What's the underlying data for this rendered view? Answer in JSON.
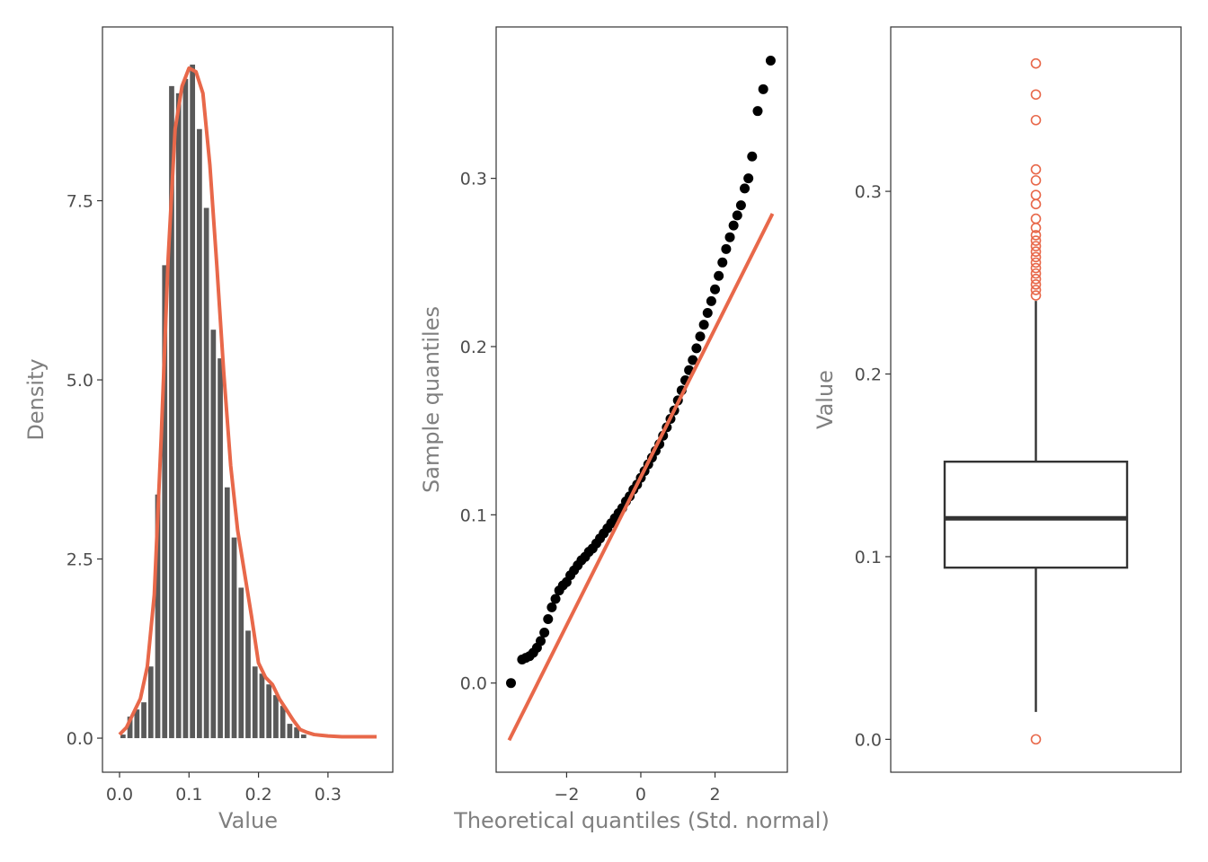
{
  "colors": {
    "bar": "#595959",
    "density": "#e8684a",
    "qq_point": "#000000",
    "qq_line": "#e8684a",
    "box": "#333333",
    "outlier": "#e8684a",
    "panel_border": "#333333",
    "tick_text": "#4d4d4d",
    "axis_title": "#7f7f7f"
  },
  "chart_data": [
    {
      "type": "histogram",
      "xlabel": "Value",
      "ylabel": "Density",
      "xlim": [
        -0.0,
        0.37
      ],
      "ylim": [
        -0.3,
        9.8
      ],
      "x_ticks": [
        0.0,
        0.1,
        0.2,
        0.3
      ],
      "x_tick_labels": [
        "0.0",
        "0.1",
        "0.2",
        "0.3"
      ],
      "y_ticks": [
        0.0,
        2.5,
        5.0,
        7.5
      ],
      "y_tick_labels": [
        "0.0",
        "2.5",
        "5.0",
        "7.5"
      ],
      "bin_width": 0.01,
      "bin_start": 0.0,
      "bars": [
        0.05,
        0.3,
        0.4,
        0.5,
        1.0,
        3.4,
        6.6,
        9.1,
        9.0,
        9.2,
        9.4,
        8.5,
        7.4,
        5.7,
        5.3,
        3.5,
        2.8,
        2.1,
        1.5,
        1.0,
        0.9,
        0.75,
        0.6,
        0.45,
        0.2,
        0.15,
        0.05
      ],
      "density_curve": {
        "x": [
          0.0,
          0.01,
          0.02,
          0.03,
          0.04,
          0.05,
          0.06,
          0.07,
          0.08,
          0.09,
          0.1,
          0.11,
          0.12,
          0.13,
          0.14,
          0.15,
          0.16,
          0.17,
          0.18,
          0.19,
          0.2,
          0.21,
          0.22,
          0.23,
          0.24,
          0.25,
          0.26,
          0.27,
          0.28,
          0.29,
          0.3,
          0.32,
          0.34,
          0.37
        ],
        "y": [
          0.05,
          0.15,
          0.35,
          0.55,
          1.0,
          2.0,
          4.2,
          6.7,
          8.5,
          9.1,
          9.35,
          9.3,
          9.0,
          8.0,
          6.6,
          5.1,
          3.8,
          2.9,
          2.3,
          1.7,
          1.05,
          0.85,
          0.75,
          0.55,
          0.4,
          0.25,
          0.12,
          0.08,
          0.05,
          0.04,
          0.03,
          0.02,
          0.02,
          0.02
        ]
      }
    },
    {
      "type": "scatter",
      "xlabel": "Theoretical quantiles (Std. normal)",
      "ylabel": "Sample quantiles",
      "xlim": [
        -3.9,
        3.95
      ],
      "ylim": [
        -0.053,
        0.39
      ],
      "x_ticks": [
        -2,
        0,
        2
      ],
      "x_tick_labels": [
        "−2",
        "0",
        "2"
      ],
      "y_ticks": [
        0.0,
        0.1,
        0.2,
        0.3
      ],
      "y_tick_labels": [
        "0.0",
        "0.1",
        "0.2",
        "0.3"
      ],
      "reference_line": {
        "x": [
          -3.55,
          3.55
        ],
        "y": [
          -0.034,
          0.279
        ]
      },
      "points": {
        "x": [
          -3.5,
          -3.2,
          -3.1,
          -3.0,
          -2.9,
          -2.8,
          -2.7,
          -2.6,
          -2.5,
          -2.4,
          -2.3,
          -2.2,
          -2.1,
          -2.0,
          -1.9,
          -1.8,
          -1.7,
          -1.6,
          -1.5,
          -1.4,
          -1.3,
          -1.2,
          -1.1,
          -1.0,
          -0.9,
          -0.8,
          -0.7,
          -0.6,
          -0.5,
          -0.4,
          -0.3,
          -0.2,
          -0.1,
          0.0,
          0.1,
          0.2,
          0.3,
          0.4,
          0.5,
          0.6,
          0.7,
          0.8,
          0.9,
          1.0,
          1.1,
          1.2,
          1.3,
          1.4,
          1.5,
          1.6,
          1.7,
          1.8,
          1.9,
          2.0,
          2.1,
          2.2,
          2.3,
          2.4,
          2.5,
          2.6,
          2.7,
          2.8,
          2.9,
          3.0,
          3.15,
          3.3,
          3.5
        ],
        "y": [
          0.0,
          0.014,
          0.015,
          0.016,
          0.018,
          0.021,
          0.025,
          0.03,
          0.038,
          0.045,
          0.05,
          0.055,
          0.058,
          0.06,
          0.064,
          0.067,
          0.07,
          0.073,
          0.075,
          0.078,
          0.08,
          0.083,
          0.086,
          0.089,
          0.092,
          0.095,
          0.098,
          0.101,
          0.104,
          0.108,
          0.111,
          0.115,
          0.118,
          0.122,
          0.126,
          0.13,
          0.134,
          0.138,
          0.142,
          0.147,
          0.152,
          0.157,
          0.162,
          0.168,
          0.174,
          0.18,
          0.186,
          0.192,
          0.199,
          0.206,
          0.213,
          0.22,
          0.227,
          0.234,
          0.242,
          0.25,
          0.258,
          0.265,
          0.272,
          0.278,
          0.284,
          0.294,
          0.3,
          0.313,
          0.34,
          0.353,
          0.37
        ]
      }
    },
    {
      "type": "boxplot",
      "ylabel": "Value",
      "ylim": [
        -0.018,
        0.39
      ],
      "y_ticks": [
        0.0,
        0.1,
        0.2,
        0.3
      ],
      "y_tick_labels": [
        "0.0",
        "0.1",
        "0.2",
        "0.3"
      ],
      "whisker_low": 0.015,
      "q1": 0.094,
      "median": 0.121,
      "q3": 0.152,
      "whisker_high": 0.24,
      "outliers": [
        0.0,
        0.243,
        0.246,
        0.249,
        0.252,
        0.255,
        0.258,
        0.261,
        0.264,
        0.267,
        0.27,
        0.273,
        0.276,
        0.28,
        0.285,
        0.293,
        0.298,
        0.306,
        0.312,
        0.339,
        0.353,
        0.37
      ]
    }
  ]
}
